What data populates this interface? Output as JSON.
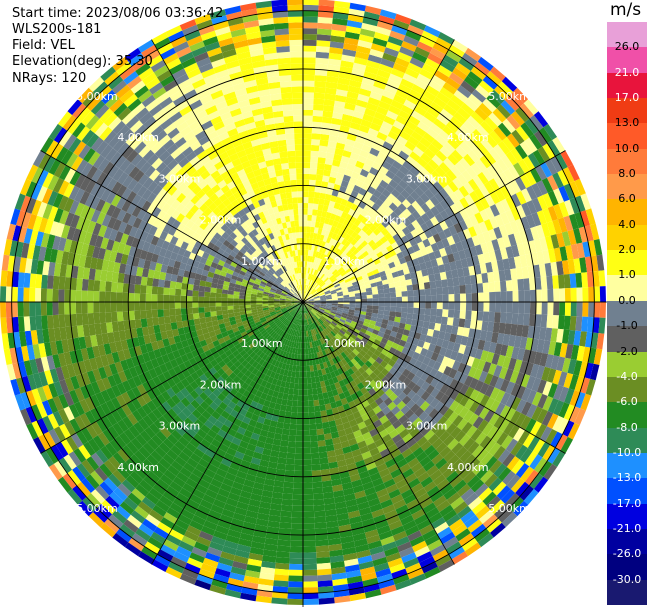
{
  "info": {
    "start_time": "Start time: 2023/08/06 03:36:42",
    "instrument": "WLS200s-181",
    "field": "Field: VEL",
    "elevation": "Elevation(deg): 35.30",
    "nrays": "NRays: 120"
  },
  "chart_data": {
    "type": "heatmap",
    "projection": "polar-ppi",
    "field": "VEL",
    "units": "m/s",
    "nrays": 120,
    "elevation_deg": 35.3,
    "max_range_km": 5.2,
    "range_rings_km": [
      1,
      2,
      3,
      4,
      5
    ],
    "ring_labels": [
      "1.00km",
      "2.00km",
      "3.00km",
      "4.00km",
      "5.00km"
    ],
    "colorbar": {
      "unit": "m/s",
      "ticks": [
        "26.0",
        "21.0",
        "17.0",
        "13.0",
        "10.0",
        "8.0",
        "6.0",
        "4.0",
        "2.0",
        "1.0",
        "0.0",
        "-1.0",
        "-2.0",
        "-4.0",
        "-6.0",
        "-8.0",
        "-10.0",
        "-13.0",
        "-17.0",
        "-21.0",
        "-26.0",
        "-30.0"
      ],
      "bands": [
        {
          "value": 30.0,
          "color": "#e8a0d8"
        },
        {
          "value": 26.0,
          "color": "#f050a8"
        },
        {
          "value": 21.0,
          "color": "#e8143c"
        },
        {
          "value": 17.0,
          "color": "#f03c14"
        },
        {
          "value": 13.0,
          "color": "#ff5a28"
        },
        {
          "value": 10.0,
          "color": "#ff7b3a"
        },
        {
          "value": 8.0,
          "color": "#ff9a4a"
        },
        {
          "value": 6.0,
          "color": "#ffb400"
        },
        {
          "value": 4.0,
          "color": "#ffd200"
        },
        {
          "value": 2.0,
          "color": "#ffff14"
        },
        {
          "value": 1.0,
          "color": "#ffffa0"
        },
        {
          "value": 0.0,
          "color": "#708090"
        },
        {
          "value": -0.5,
          "color": "#606060"
        },
        {
          "value": -1.0,
          "color": "#9acd32"
        },
        {
          "value": -2.0,
          "color": "#6b8e23"
        },
        {
          "value": -4.0,
          "color": "#228b22"
        },
        {
          "value": -6.0,
          "color": "#2e8b57"
        },
        {
          "value": -8.0,
          "color": "#1e90ff"
        },
        {
          "value": -10.0,
          "color": "#0050ff"
        },
        {
          "value": -13.0,
          "color": "#0000e0"
        },
        {
          "value": -17.0,
          "color": "#0000a0"
        },
        {
          "value": -21.0,
          "color": "#000080"
        },
        {
          "value": -26.0,
          "color": "#191970"
        }
      ]
    }
  }
}
